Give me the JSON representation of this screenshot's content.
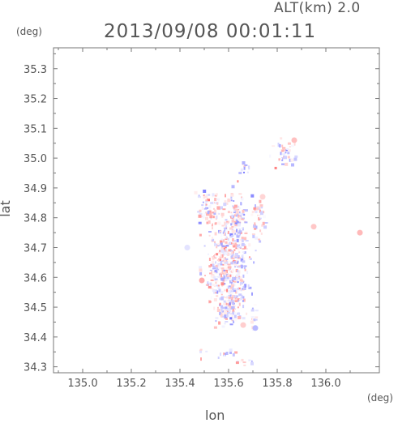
{
  "header": {
    "altitude_label": "ALT(km) 2.0",
    "timestamp": "2013/09/08 00:01:11"
  },
  "chart_data": {
    "type": "heatmap",
    "title": "2013/09/08 00:01:11",
    "subtitle": "ALT(km) 2.0",
    "xlabel": "lon",
    "ylabel": "lat",
    "x_unit": "(deg)",
    "y_unit": "(deg)",
    "xlim": [
      134.88,
      136.22
    ],
    "ylim": [
      34.28,
      35.37
    ],
    "x_ticks": [
      135.0,
      135.2,
      135.4,
      135.6,
      135.8,
      136.0
    ],
    "x_tick_labels": [
      "135.0",
      "135.2",
      "135.4",
      "135.6",
      "135.8",
      "136.0"
    ],
    "y_ticks": [
      34.3,
      34.4,
      34.5,
      34.6,
      34.7,
      34.8,
      34.9,
      35.0,
      35.1,
      35.2,
      35.3
    ],
    "y_tick_labels": [
      "34.3",
      "34.4",
      "34.5",
      "34.6",
      "34.7",
      "34.8",
      "34.9",
      "35.0",
      "35.1",
      "35.2",
      "35.3"
    ],
    "grid": false,
    "colors": {
      "positive": "#e87070",
      "negative": "#7070e0",
      "axis": "#777777"
    },
    "clusters": [
      {
        "lon": 135.59,
        "lat": 34.62,
        "sx": 0.045,
        "sy": 0.07,
        "n": 420
      },
      {
        "lon": 135.63,
        "lat": 34.78,
        "sx": 0.035,
        "sy": 0.05,
        "n": 150
      },
      {
        "lon": 135.52,
        "lat": 34.83,
        "sx": 0.025,
        "sy": 0.035,
        "n": 80
      },
      {
        "lon": 135.6,
        "lat": 34.49,
        "sx": 0.025,
        "sy": 0.025,
        "n": 90
      },
      {
        "lon": 135.72,
        "lat": 34.8,
        "sx": 0.015,
        "sy": 0.04,
        "n": 40
      },
      {
        "lon": 135.83,
        "lat": 35.02,
        "sx": 0.025,
        "sy": 0.025,
        "n": 40
      },
      {
        "lon": 135.66,
        "lat": 34.97,
        "sx": 0.012,
        "sy": 0.012,
        "n": 12
      },
      {
        "lon": 135.7,
        "lat": 34.47,
        "sx": 0.01,
        "sy": 0.02,
        "n": 15
      },
      {
        "lon": 135.55,
        "lat": 34.35,
        "sx": 0.04,
        "sy": 0.01,
        "n": 15
      },
      {
        "lon": 135.67,
        "lat": 34.32,
        "sx": 0.03,
        "sy": 0.01,
        "n": 10
      }
    ],
    "echoes": [
      {
        "lon": 136.14,
        "lat": 34.75,
        "v": 0.5
      },
      {
        "lon": 135.87,
        "lat": 35.06,
        "v": 0.45
      },
      {
        "lon": 135.49,
        "lat": 34.59,
        "v": 0.6
      },
      {
        "lon": 135.95,
        "lat": 34.77,
        "v": 0.4
      },
      {
        "lon": 135.43,
        "lat": 34.7,
        "v": -0.2
      },
      {
        "lon": 135.74,
        "lat": 34.87,
        "v": 0.3
      },
      {
        "lon": 135.66,
        "lat": 34.44,
        "v": 0.35
      },
      {
        "lon": 135.71,
        "lat": 34.43,
        "v": -0.5
      }
    ]
  }
}
